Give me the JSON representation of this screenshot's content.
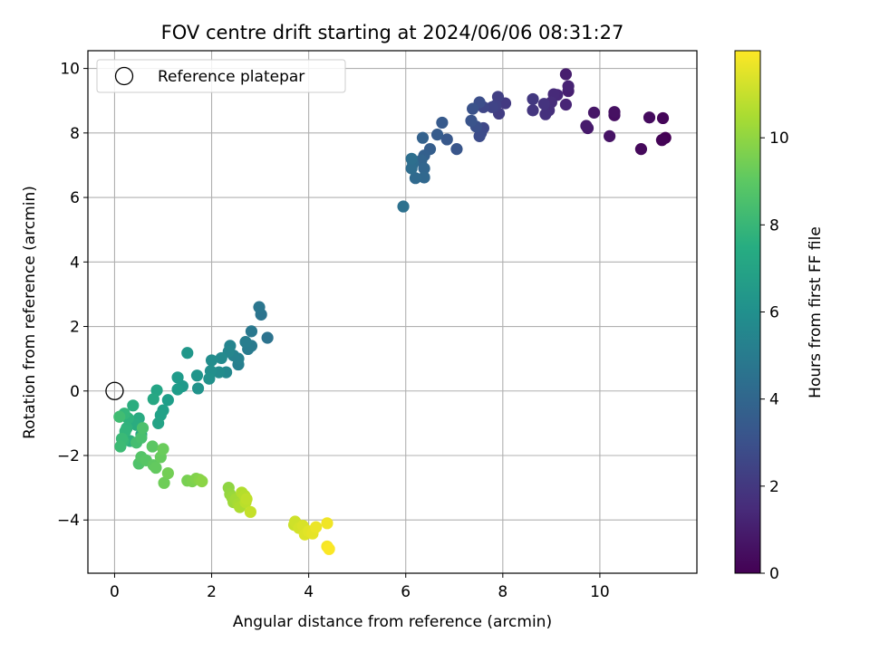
{
  "chart_data": {
    "type": "scatter",
    "title": "FOV centre drift starting at 2024/06/06 08:31:27",
    "xlabel": "Angular distance from reference (arcmin)",
    "ylabel": "Rotation from reference (arcmin)",
    "xlim": [
      -0.55,
      12.0
    ],
    "ylim": [
      -5.65,
      10.55
    ],
    "xticks": [
      0,
      2,
      4,
      6,
      8,
      10
    ],
    "yticks": [
      -4,
      -2,
      0,
      2,
      4,
      6,
      8,
      10
    ],
    "grid": true,
    "legend": {
      "position": "top-left",
      "entries": [
        "Reference platepar"
      ]
    },
    "reference_point": {
      "name": "Reference platepar",
      "x": 0,
      "y": 0
    },
    "colorbar": {
      "label": "Hours from first FF file",
      "range": [
        0,
        12
      ],
      "ticks": [
        0,
        2,
        4,
        6,
        8,
        10
      ],
      "colormap": "viridis"
    },
    "series": [
      {
        "points": [
          [
            11.35,
            7.85
          ],
          [
            11.28,
            7.78
          ],
          [
            11.3,
            8.46
          ],
          [
            10.85,
            7.5
          ],
          [
            11.02,
            8.48
          ],
          [
            10.3,
            8.55
          ],
          [
            10.3,
            8.65
          ],
          [
            10.2,
            7.9
          ],
          [
            9.88,
            8.63
          ],
          [
            9.75,
            8.15
          ],
          [
            9.72,
            8.22
          ],
          [
            9.3,
            9.82
          ],
          [
            9.35,
            9.3
          ],
          [
            9.35,
            9.45
          ],
          [
            9.3,
            8.88
          ],
          [
            9.12,
            9.18
          ],
          [
            9.05,
            9.2
          ],
          [
            9.0,
            8.95
          ],
          [
            8.95,
            8.7
          ],
          [
            8.88,
            8.58
          ],
          [
            8.85,
            8.9
          ],
          [
            8.62,
            8.7
          ],
          [
            8.62,
            9.05
          ],
          [
            8.05,
            8.92
          ],
          [
            7.92,
            8.6
          ],
          [
            7.9,
            9.12
          ],
          [
            7.85,
            8.85
          ],
          [
            7.78,
            8.8
          ],
          [
            7.6,
            8.8
          ],
          [
            7.6,
            8.15
          ],
          [
            7.55,
            8.0
          ],
          [
            7.52,
            7.9
          ],
          [
            7.52,
            8.95
          ],
          [
            7.45,
            8.2
          ],
          [
            7.38,
            8.75
          ],
          [
            7.35,
            8.38
          ],
          [
            7.05,
            7.5
          ],
          [
            6.85,
            7.8
          ],
          [
            6.75,
            8.32
          ],
          [
            6.65,
            7.95
          ],
          [
            6.5,
            7.5
          ],
          [
            6.38,
            7.3
          ],
          [
            6.35,
            7.85
          ],
          [
            6.32,
            7.15
          ],
          [
            6.38,
            6.9
          ],
          [
            6.38,
            6.62
          ],
          [
            6.2,
            6.6
          ],
          [
            6.15,
            7.05
          ],
          [
            6.12,
            6.9
          ],
          [
            6.12,
            7.2
          ],
          [
            5.95,
            5.72
          ],
          [
            3.15,
            1.65
          ],
          [
            3.02,
            2.37
          ],
          [
            2.98,
            2.6
          ],
          [
            2.82,
            1.85
          ],
          [
            2.82,
            1.4
          ],
          [
            2.75,
            1.3
          ],
          [
            2.7,
            1.52
          ],
          [
            2.55,
            0.82
          ],
          [
            2.55,
            1.0
          ],
          [
            2.45,
            1.1
          ],
          [
            2.38,
            1.4
          ],
          [
            2.35,
            1.22
          ],
          [
            2.3,
            0.58
          ],
          [
            2.2,
            1.02
          ],
          [
            2.15,
            0.58
          ],
          [
            2.0,
            0.95
          ],
          [
            1.98,
            0.62
          ],
          [
            1.95,
            0.38
          ],
          [
            1.72,
            0.08
          ],
          [
            1.7,
            0.48
          ],
          [
            1.5,
            1.18
          ],
          [
            1.4,
            0.15
          ],
          [
            1.3,
            0.42
          ],
          [
            1.3,
            0.05
          ],
          [
            1.1,
            -0.28
          ],
          [
            1.0,
            -0.6
          ],
          [
            0.95,
            -0.75
          ],
          [
            0.9,
            -1.0
          ],
          [
            0.87,
            0.02
          ],
          [
            0.8,
            -0.25
          ],
          [
            0.55,
            -1.35
          ],
          [
            0.5,
            -0.85
          ],
          [
            0.45,
            -1.05
          ],
          [
            0.38,
            -0.45
          ],
          [
            0.32,
            -1.55
          ],
          [
            0.28,
            -0.85
          ],
          [
            0.25,
            -1.15
          ],
          [
            0.22,
            -1.25
          ],
          [
            0.2,
            -0.7
          ],
          [
            0.18,
            -1.55
          ],
          [
            0.15,
            -1.48
          ],
          [
            0.12,
            -1.72
          ],
          [
            0.1,
            -0.8
          ],
          [
            0.45,
            -1.6
          ],
          [
            0.55,
            -1.45
          ],
          [
            0.58,
            -1.15
          ],
          [
            0.5,
            -2.25
          ],
          [
            0.55,
            -2.05
          ],
          [
            0.65,
            -2.15
          ],
          [
            0.78,
            -1.72
          ],
          [
            0.8,
            -2.3
          ],
          [
            0.85,
            -2.38
          ],
          [
            0.95,
            -2.05
          ],
          [
            1.0,
            -1.8
          ],
          [
            1.02,
            -2.85
          ],
          [
            1.1,
            -2.55
          ],
          [
            1.5,
            -2.78
          ],
          [
            1.6,
            -2.8
          ],
          [
            1.68,
            -2.72
          ],
          [
            1.75,
            -2.75
          ],
          [
            1.8,
            -2.8
          ],
          [
            2.35,
            -3.0
          ],
          [
            2.38,
            -3.2
          ],
          [
            2.42,
            -3.3
          ],
          [
            2.45,
            -3.45
          ],
          [
            2.5,
            -3.35
          ],
          [
            2.55,
            -3.5
          ],
          [
            2.58,
            -3.6
          ],
          [
            2.62,
            -3.15
          ],
          [
            2.68,
            -3.25
          ],
          [
            2.7,
            -3.45
          ],
          [
            2.72,
            -3.35
          ],
          [
            2.8,
            -3.75
          ],
          [
            3.7,
            -4.15
          ],
          [
            3.72,
            -4.05
          ],
          [
            3.8,
            -4.25
          ],
          [
            3.88,
            -4.18
          ],
          [
            3.92,
            -4.45
          ],
          [
            4.0,
            -4.35
          ],
          [
            4.08,
            -4.42
          ],
          [
            4.15,
            -4.22
          ],
          [
            4.38,
            -4.1
          ],
          [
            4.38,
            -4.82
          ],
          [
            4.42,
            -4.9
          ]
        ]
      }
    ]
  }
}
